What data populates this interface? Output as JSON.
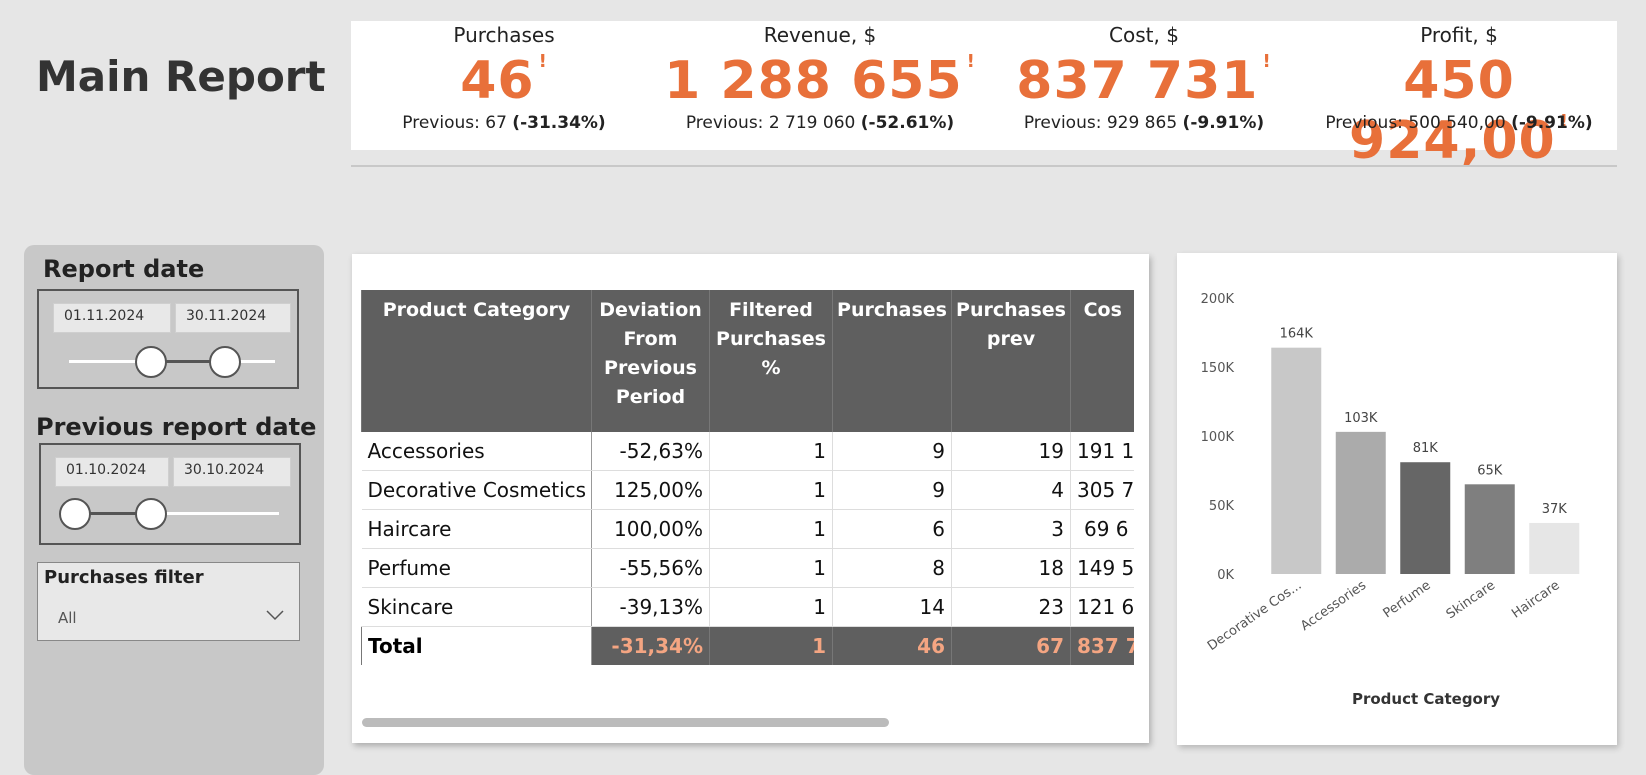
{
  "header": {
    "title": "Main Report"
  },
  "kpis": [
    {
      "label": "Purchases",
      "value": "46",
      "flag": "!",
      "previous": "Previous: 67",
      "change": "(-31.34%)"
    },
    {
      "label": "Revenue, $",
      "value": "1 288 655",
      "flag": "!",
      "previous": "Previous: 2 719 060",
      "change": "(-52.61%)"
    },
    {
      "label": "Cost, $",
      "value": "837 731",
      "flag": "!",
      "previous": "Previous: 929 865",
      "change": "(-9.91%)"
    },
    {
      "label": "Profit, $",
      "value": "450 924,00",
      "flag": "!",
      "previous": "Previous: 500 540,00",
      "change": "(-9.91%)"
    }
  ],
  "filters": {
    "report_date": {
      "title": "Report date",
      "from": "01.11.2024",
      "to": "30.11.2024"
    },
    "previous_report_date": {
      "title": "Previous report date",
      "from": "01.10.2024",
      "to": "30.10.2024"
    },
    "purchases_filter": {
      "title": "Purchases filter",
      "selected": "All"
    }
  },
  "table": {
    "columns": [
      "Product Category",
      "Deviation From Previous Period",
      "Filtered Purchases %",
      "Purchases",
      "Purchases prev",
      "Cos"
    ],
    "rows": [
      [
        "Accessories",
        "-52,63%",
        "1",
        "9",
        "19",
        "191 1"
      ],
      [
        "Decorative Cosmetics",
        "125,00%",
        "1",
        "9",
        "4",
        "305 7"
      ],
      [
        "Haircare",
        "100,00%",
        "1",
        "6",
        "3",
        "69 6"
      ],
      [
        "Perfume",
        "-55,56%",
        "1",
        "8",
        "18",
        "149 5"
      ],
      [
        "Skincare",
        "-39,13%",
        "1",
        "14",
        "23",
        "121 6"
      ]
    ],
    "total": [
      "Total",
      "-31,34%",
      "1",
      "46",
      "67",
      "837 7"
    ]
  },
  "chart_data": {
    "type": "bar",
    "x_label": "Product Category",
    "categories": [
      "Decorative Cos...",
      "Accessories",
      "Perfume",
      "Skincare",
      "Haircare"
    ],
    "values": [
      164000,
      103000,
      81000,
      65000,
      37000
    ],
    "value_labels": [
      "164K",
      "103K",
      "81K",
      "65K",
      "37K"
    ],
    "colors": [
      "#c8c8c8",
      "#ababab",
      "#666666",
      "#7f7f7f",
      "#e6e6e6"
    ],
    "ylim": [
      0,
      200000
    ],
    "yticks": [
      {
        "value": 0,
        "label": "0K"
      },
      {
        "value": 50000,
        "label": "50K"
      },
      {
        "value": 100000,
        "label": "100K"
      },
      {
        "value": 150000,
        "label": "150K"
      },
      {
        "value": 200000,
        "label": "200K"
      }
    ]
  }
}
